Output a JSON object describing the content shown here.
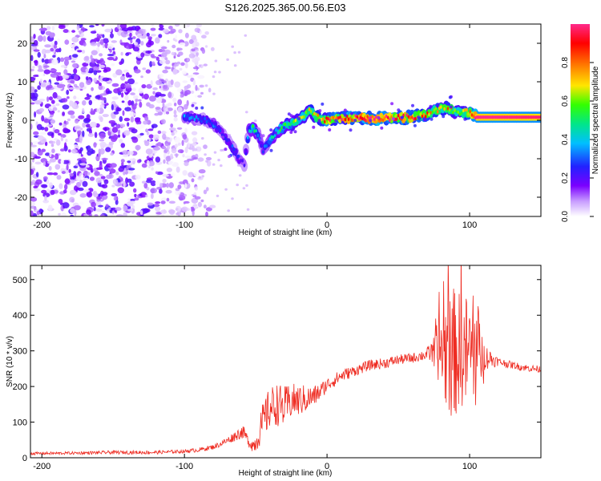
{
  "title": "S126.2025.365.00.56.E03",
  "chart_data": [
    {
      "type": "heatmap",
      "xlabel": "Height of straight line (km)",
      "ylabel": "Frequency (Hz)",
      "xlim": [
        -208,
        150
      ],
      "ylim": [
        -25,
        25
      ],
      "xticks": [
        -200,
        -100,
        0,
        100
      ],
      "xtick_labels": [
        "-200",
        "-100",
        "0",
        "100"
      ],
      "yticks": [
        20,
        10,
        0,
        -10,
        -20
      ],
      "ytick_labels": [
        "20",
        "10",
        "0",
        "-10",
        "-20"
      ],
      "colorbar": {
        "label": "Normalized spectral amplitude",
        "range": [
          0,
          1
        ],
        "ticks": [
          0.0,
          0.2,
          0.4,
          0.6,
          0.8
        ],
        "tick_labels": [
          "0.0",
          "0.2",
          "0.4",
          "0.6",
          "0.8"
        ]
      },
      "ridge": {
        "name": "dominant frequency track",
        "x": [
          -100,
          -92,
          -85,
          -80,
          -75,
          -70,
          -65,
          -62,
          -58,
          -55,
          -52,
          -48,
          -45,
          -40,
          -35,
          -30,
          -25,
          -20,
          -15,
          -12,
          -8,
          -5,
          0,
          10,
          20,
          40,
          60,
          70,
          75,
          80,
          85,
          90,
          95,
          100,
          105,
          120,
          150
        ],
        "freq": [
          1,
          0.5,
          0,
          -1,
          -3,
          -5,
          -8,
          -10,
          -11.5,
          -3,
          -2,
          -4,
          -8,
          -5,
          -3,
          -1.5,
          -1,
          0,
          1.5,
          2.5,
          1,
          0.5,
          0,
          0.5,
          0.5,
          0.5,
          0.8,
          1.5,
          2.5,
          3,
          3.2,
          2.2,
          2,
          2.2,
          0.8,
          0.8,
          0.8
        ],
        "amplitude": [
          0.35,
          0.3,
          0.25,
          0.3,
          0.25,
          0.22,
          0.3,
          0.2,
          0.18,
          0.35,
          0.5,
          0.3,
          0.25,
          0.4,
          0.45,
          0.55,
          0.55,
          0.6,
          0.6,
          0.65,
          0.65,
          0.75,
          0.85,
          0.85,
          0.95,
          0.95,
          0.9,
          0.75,
          0.7,
          0.7,
          0.75,
          0.6,
          0.55,
          0.8,
          1.0,
          1.0,
          0.98
        ]
      },
      "noise_region_x": [
        -208,
        -90
      ]
    },
    {
      "type": "line",
      "xlabel": "Height of straight line (km)",
      "ylabel": "SNR (10 * v/v)",
      "xlim": [
        -208,
        150
      ],
      "ylim": [
        0,
        540
      ],
      "xticks": [
        -200,
        -100,
        0,
        100
      ],
      "xtick_labels": [
        "-200",
        "-100",
        "0",
        "100"
      ],
      "yticks": [
        0,
        100,
        200,
        300,
        400,
        500
      ],
      "ytick_labels": [
        "0",
        "100",
        "200",
        "300",
        "400",
        "500"
      ],
      "series": [
        {
          "name": "SNR",
          "color": "#ee2a20",
          "x": [
            -208,
            -180,
            -150,
            -120,
            -100,
            -90,
            -80,
            -75,
            -70,
            -65,
            -60,
            -58,
            -55,
            -52,
            -50,
            -45,
            -40,
            -35,
            -30,
            -25,
            -20,
            -15,
            -10,
            -5,
            0,
            10,
            20,
            30,
            40,
            50,
            60,
            65,
            70,
            75,
            80,
            85,
            90,
            95,
            100,
            105,
            110,
            120,
            130,
            140,
            150
          ],
          "values": [
            12,
            13,
            15,
            15,
            18,
            22,
            30,
            38,
            48,
            60,
            72,
            68,
            45,
            35,
            40,
            100,
            140,
            150,
            140,
            160,
            160,
            165,
            170,
            185,
            205,
            230,
            245,
            260,
            265,
            275,
            280,
            285,
            290,
            300,
            305,
            300,
            295,
            300,
            295,
            300,
            285,
            270,
            260,
            252,
            248
          ],
          "noise_amplitude": [
            4,
            4,
            5,
            5,
            5,
            6,
            7,
            8,
            10,
            14,
            18,
            18,
            15,
            20,
            25,
            55,
            60,
            60,
            60,
            50,
            45,
            40,
            30,
            25,
            20,
            18,
            15,
            15,
            15,
            14,
            14,
            15,
            18,
            40,
            120,
            190,
            180,
            160,
            170,
            160,
            40,
            12,
            10,
            10,
            10
          ]
        }
      ]
    },
    {
      "type": "colorbar",
      "label": "Normalized spectral amplitude",
      "colors": [
        "#ffffff",
        "#c79bff",
        "#7a00ff",
        "#2222ff",
        "#00bfff",
        "#00e68a",
        "#33ff00",
        "#ffe600",
        "#ff8000",
        "#ff0000",
        "#ff2a8a"
      ],
      "stops": [
        0.0,
        0.08,
        0.16,
        0.26,
        0.38,
        0.48,
        0.58,
        0.68,
        0.78,
        0.9,
        1.0
      ]
    }
  ]
}
